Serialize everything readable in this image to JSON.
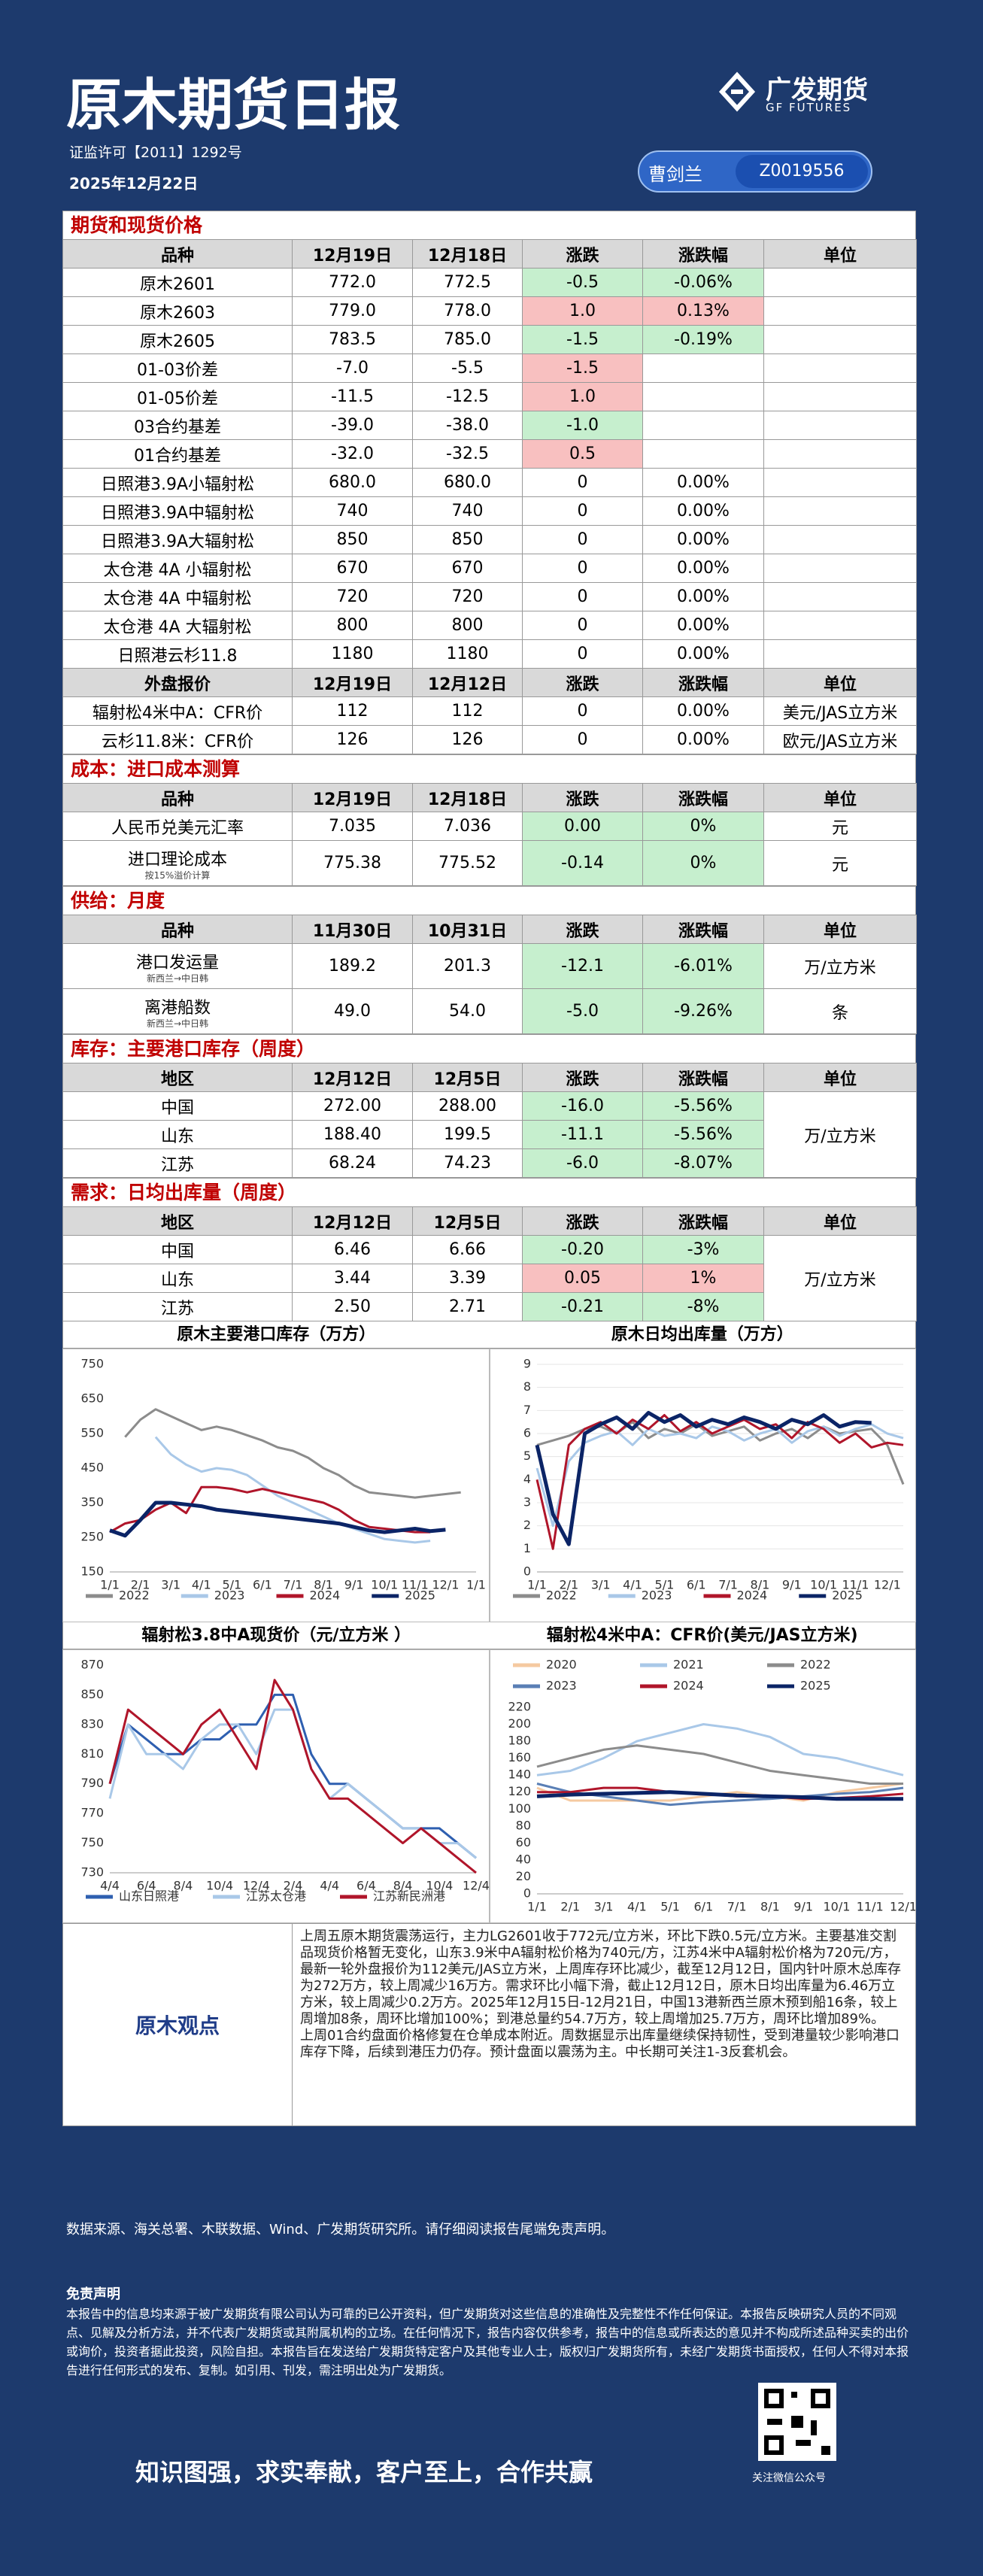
{
  "header": {
    "title": "原木期货日报",
    "license": "证监许可【2011】1292号",
    "date": "2025年12月22日",
    "logo_cn": "广发期货",
    "logo_en": "GF FUTURES",
    "analyst": "曹剑兰",
    "analyst_id": "Z0019556"
  },
  "sections": [
    {
      "title": "期货和现货价格",
      "blocks": [
        {
          "header": [
            "品种",
            "12月19日",
            "12月18日",
            "涨跌",
            "涨跌幅",
            "单位"
          ],
          "rows": [
            {
              "cells": [
                "原木2601",
                "772.0",
                "772.5",
                "-0.5",
                "-0.06%"
              ],
              "hl": {
                "3": "#c6efce",
                "4": "#c6efce"
              }
            },
            {
              "cells": [
                "原木2603",
                "779.0",
                "778.0",
                "1.0",
                "0.13%"
              ],
              "hl": {
                "3": "#f8c0c0",
                "4": "#f8c0c0"
              }
            },
            {
              "cells": [
                "原木2605",
                "783.5",
                "785.0",
                "-1.5",
                "-0.19%"
              ],
              "hl": {
                "3": "#c6efce",
                "4": "#c6efce"
              }
            },
            {
              "cells": [
                "01-03价差",
                "-7.0",
                "-5.5",
                "-1.5"
              ],
              "hl": {
                "3": "#f8c0c0"
              }
            },
            {
              "cells": [
                "01-05价差",
                "-11.5",
                "-12.5",
                "1.0"
              ],
              "hl": {
                "3": "#f8c0c0"
              }
            },
            {
              "cells": [
                "03合约基差",
                "-39.0",
                "-38.0",
                "-1.0"
              ],
              "hl": {
                "3": "#c6efce"
              }
            },
            {
              "cells": [
                "01合约基差",
                "-32.0",
                "-32.5",
                "0.5"
              ],
              "hl": {
                "3": "#f8c0c0"
              }
            },
            {
              "cells": [
                "日照港3.9A小辐射松",
                "680.0",
                "680.0",
                "0",
                "0.00%"
              ]
            },
            {
              "cells": [
                "日照港3.9A中辐射松",
                "740",
                "740",
                "0",
                "0.00%"
              ]
            },
            {
              "cells": [
                "日照港3.9A大辐射松",
                "850",
                "850",
                "0",
                "0.00%"
              ]
            },
            {
              "cells": [
                "太仓港 4A 小辐射松",
                "670",
                "670",
                "0",
                "0.00%"
              ]
            },
            {
              "cells": [
                "太仓港 4A 中辐射松",
                "720",
                "720",
                "0",
                "0.00%"
              ]
            },
            {
              "cells": [
                "太仓港 4A 大辐射松",
                "800",
                "800",
                "0",
                "0.00%"
              ]
            },
            {
              "cells": [
                "日照港云杉11.8",
                "1180",
                "1180",
                "0",
                "0.00%"
              ]
            }
          ]
        },
        {
          "header": [
            "外盘报价",
            "12月19日",
            "12月12日",
            "涨跌",
            "涨跌幅",
            "单位"
          ],
          "rows": [
            {
              "cells": [
                "辐射松4米中A：CFR价",
                "112",
                "112",
                "0",
                "0.00%"
              ],
              "unit": "美元/JAS立方米"
            },
            {
              "cells": [
                "云杉11.8米：CFR价",
                "126",
                "126",
                "0",
                "0.00%"
              ],
              "unit": "欧元/JAS立方米"
            }
          ]
        }
      ]
    },
    {
      "title": "成本：进口成本测算",
      "blocks": [
        {
          "header": [
            "品种",
            "12月19日",
            "12月18日",
            "涨跌",
            "涨跌幅",
            "单位"
          ],
          "rows": [
            {
              "cells": [
                "人民币兑美元汇率",
                "7.035",
                "7.036",
                "0.00",
                "0%"
              ],
              "unit": "元",
              "hl": {
                "3": "#c6efce",
                "4": "#c6efce"
              }
            },
            {
              "cells": [
                "进口理论成本",
                "775.38",
                "775.52",
                "-0.14",
                "0%"
              ],
              "sub": "按15%溢价计算",
              "unit": "元",
              "hl": {
                "3": "#c6efce",
                "4": "#c6efce"
              }
            }
          ]
        }
      ]
    },
    {
      "title": "供给：月度",
      "blocks": [
        {
          "header": [
            "品种",
            "11月30日",
            "10月31日",
            "涨跌",
            "涨跌幅",
            "单位"
          ],
          "rows": [
            {
              "cells": [
                "港口发运量",
                "189.2",
                "201.3",
                "-12.1",
                "-6.01%"
              ],
              "sub": "新西兰→中日韩",
              "unit": "万/立方米",
              "hl": {
                "3": "#c6efce",
                "4": "#c6efce"
              }
            },
            {
              "cells": [
                "离港船数",
                "49.0",
                "54.0",
                "-5.0",
                "-9.26%"
              ],
              "sub": "新西兰→中日韩",
              "unit": "条",
              "hl": {
                "3": "#c6efce",
                "4": "#c6efce"
              }
            }
          ]
        }
      ]
    },
    {
      "title": "库存：主要港口库存（周度）",
      "blocks": [
        {
          "header": [
            "地区",
            "12月12日",
            "12月5日",
            "涨跌",
            "涨跌幅",
            "单位"
          ],
          "unit": "万/立方米",
          "rows": [
            {
              "cells": [
                "中国",
                "272.00",
                "288.00",
                "-16.0",
                "-5.56%"
              ],
              "hl": {
                "3": "#c6efce",
                "4": "#c6efce"
              }
            },
            {
              "cells": [
                "山东",
                "188.40",
                "199.5",
                "-11.1",
                "-5.56%"
              ],
              "hl": {
                "3": "#c6efce",
                "4": "#c6efce"
              }
            },
            {
              "cells": [
                "江苏",
                "68.24",
                "74.23",
                "-6.0",
                "-8.07%"
              ],
              "hl": {
                "3": "#c6efce",
                "4": "#c6efce"
              }
            }
          ]
        }
      ]
    },
    {
      "title": "需求：日均出库量（周度）",
      "blocks": [
        {
          "header": [
            "地区",
            "12月12日",
            "12月5日",
            "涨跌",
            "涨跌幅",
            "单位"
          ],
          "unit": "万/立方米",
          "rows": [
            {
              "cells": [
                "中国",
                "6.46",
                "6.66",
                "-0.20",
                "-3%"
              ],
              "hl": {
                "3": "#c6efce",
                "4": "#c6efce"
              }
            },
            {
              "cells": [
                "山东",
                "3.44",
                "3.39",
                "0.05",
                "1%"
              ],
              "hl": {
                "3": "#f8c0c0",
                "4": "#f8c0c0"
              }
            },
            {
              "cells": [
                "江苏",
                "2.50",
                "2.71",
                "-0.21",
                "-8%"
              ],
              "hl": {
                "3": "#c6efce",
                "4": "#c6efce"
              }
            }
          ]
        }
      ]
    }
  ],
  "chart_data": [
    {
      "type": "line",
      "title": "原木主要港口库存（万方）",
      "legend": "bottom",
      "grid": false,
      "categories": [
        "1/1",
        null,
        "2/1",
        null,
        "3/1",
        null,
        "4/1",
        null,
        "5/1",
        null,
        "6/1",
        null,
        "7/1",
        null,
        "8/1",
        null,
        "9/1",
        null,
        "10/1",
        null,
        "11/1",
        null,
        "12/1",
        null,
        "1/1"
      ],
      "ylim": [
        150,
        750
      ],
      "yticks": [
        150,
        250,
        350,
        450,
        550,
        650,
        750
      ],
      "series": [
        {
          "name": "2022",
          "color": "#8c8c8c",
          "values": [
            null,
            540,
            590,
            620,
            600,
            580,
            560,
            570,
            560,
            545,
            530,
            510,
            500,
            480,
            450,
            430,
            400,
            380,
            375,
            370,
            365,
            370,
            375,
            380,
            null
          ]
        },
        {
          "name": "2023",
          "color": "#a9c8e8",
          "values": [
            null,
            null,
            null,
            540,
            490,
            460,
            440,
            450,
            445,
            430,
            400,
            370,
            350,
            330,
            310,
            290,
            275,
            260,
            245,
            240,
            235,
            240,
            null,
            null,
            null
          ]
        },
        {
          "name": "2024",
          "color": "#b0152a",
          "values": [
            265,
            290,
            300,
            330,
            350,
            320,
            395,
            395,
            390,
            380,
            390,
            380,
            370,
            360,
            350,
            330,
            300,
            280,
            275,
            270,
            265,
            265,
            null,
            null,
            null
          ]
        },
        {
          "name": "2025",
          "color": "#0b2466",
          "values": [
            270,
            255,
            300,
            350,
            350,
            345,
            340,
            330,
            325,
            320,
            315,
            310,
            305,
            300,
            295,
            290,
            280,
            270,
            265,
            270,
            275,
            268,
            272,
            null,
            null
          ]
        }
      ]
    },
    {
      "type": "line",
      "title": "原木日均出库量（万方）",
      "legend": "bottom",
      "grid": true,
      "categories": [
        "1/1",
        null,
        "2/1",
        null,
        "3/1",
        null,
        "4/1",
        null,
        "5/1",
        null,
        "6/1",
        null,
        "7/1",
        null,
        "8/1",
        null,
        "9/1",
        null,
        "10/1",
        null,
        "11/1",
        null,
        "12/1",
        null
      ],
      "ylim": [
        0,
        9
      ],
      "yticks": [
        0,
        1,
        2,
        3,
        4,
        5,
        6,
        7,
        8,
        9
      ],
      "series": [
        {
          "name": "2022",
          "color": "#8c8c8c",
          "values": [
            5.5,
            5.7,
            5.9,
            6.2,
            6.3,
            6.0,
            6.5,
            5.8,
            6.2,
            6.0,
            6.4,
            5.9,
            6.1,
            6.3,
            5.7,
            6.0,
            6.2,
            5.8,
            6.3,
            6.0,
            6.1,
            6.2,
            5.5,
            3.8
          ]
        },
        {
          "name": "2023",
          "color": "#a9c8e8",
          "values": [
            4.5,
            2.0,
            4.8,
            5.6,
            5.9,
            6.1,
            5.5,
            6.2,
            5.9,
            6.0,
            5.8,
            6.3,
            6.1,
            5.7,
            6.0,
            6.2,
            5.6,
            6.1,
            6.3,
            5.9,
            6.2,
            6.4,
            6.0,
            5.8
          ]
        },
        {
          "name": "2024",
          "color": "#b0152a",
          "values": [
            4.0,
            1.0,
            5.5,
            6.2,
            6.5,
            6.0,
            6.6,
            6.2,
            6.8,
            6.1,
            6.5,
            6.0,
            6.3,
            6.6,
            6.2,
            6.4,
            5.8,
            6.5,
            6.2,
            5.6,
            6.0,
            5.4,
            5.6,
            5.5
          ]
        },
        {
          "name": "2025",
          "color": "#0b2466",
          "values": [
            5.5,
            2.5,
            1.2,
            6.0,
            6.4,
            6.7,
            6.2,
            6.9,
            6.5,
            6.8,
            6.3,
            6.6,
            6.4,
            6.7,
            6.5,
            6.2,
            6.6,
            6.4,
            6.8,
            6.3,
            6.5,
            6.46,
            null,
            null
          ]
        }
      ]
    },
    {
      "type": "line",
      "title": "辐射松3.8中A现货价（元/立方米 ）",
      "legend": "bottom",
      "grid": false,
      "categories": [
        "4/4",
        null,
        "6/4",
        null,
        "8/4",
        null,
        "10/4",
        null,
        "12/4",
        null,
        "2/4",
        null,
        "4/4",
        null,
        "6/4",
        null,
        "8/4",
        null,
        "10/4",
        null,
        "12/4"
      ],
      "ylim": [
        730,
        870
      ],
      "yticks": [
        730,
        750,
        770,
        790,
        810,
        830,
        850,
        870
      ],
      "series": [
        {
          "name": "山东日照港",
          "color": "#2e5fb0",
          "values": [
            790,
            830,
            820,
            810,
            810,
            820,
            820,
            830,
            830,
            850,
            850,
            810,
            790,
            790,
            780,
            770,
            760,
            760,
            760,
            750,
            740
          ]
        },
        {
          "name": "江苏太仓港",
          "color": "#a9c8e8",
          "values": [
            780,
            830,
            810,
            810,
            800,
            820,
            830,
            830,
            810,
            840,
            840,
            800,
            780,
            790,
            780,
            770,
            760,
            760,
            750,
            750,
            740
          ]
        },
        {
          "name": "江苏新民洲港",
          "color": "#b0152a",
          "values": [
            790,
            840,
            830,
            820,
            810,
            830,
            840,
            820,
            800,
            860,
            840,
            800,
            780,
            780,
            770,
            760,
            750,
            760,
            750,
            740,
            730
          ]
        }
      ]
    },
    {
      "type": "line",
      "title": "辐射松4米中A：CFR价(美元/JAS立方米)",
      "legend": "top",
      "grid": false,
      "categories": [
        "1/1",
        "2/1",
        "3/1",
        "4/1",
        "5/1",
        "6/1",
        "7/1",
        "8/1",
        "9/1",
        "10/1",
        "11/1",
        "12/1"
      ],
      "ylim": [
        0,
        220
      ],
      "yticks": [
        0,
        20,
        40,
        60,
        80,
        100,
        120,
        140,
        160,
        180,
        200,
        220
      ],
      "series": [
        {
          "name": "2020",
          "color": "#f5c9a0",
          "values": [
            125,
            110,
            110,
            110,
            110,
            115,
            120,
            115,
            110,
            120,
            125,
            130
          ]
        },
        {
          "name": "2021",
          "color": "#a9c8e8",
          "values": [
            140,
            145,
            160,
            180,
            190,
            200,
            195,
            185,
            165,
            160,
            150,
            140
          ]
        },
        {
          "name": "2022",
          "color": "#8c8c8c",
          "values": [
            150,
            160,
            170,
            175,
            170,
            165,
            155,
            145,
            140,
            135,
            130,
            130
          ]
        },
        {
          "name": "2023",
          "color": "#5a7fb5",
          "values": [
            130,
            120,
            115,
            110,
            105,
            108,
            110,
            112,
            115,
            118,
            120,
            125
          ]
        },
        {
          "name": "2024",
          "color": "#b0152a",
          "values": [
            120,
            120,
            125,
            125,
            120,
            118,
            115,
            115,
            112,
            113,
            115,
            118
          ]
        },
        {
          "name": "2025",
          "color": "#0b2466",
          "values": [
            115,
            117,
            118,
            119,
            120,
            118,
            116,
            115,
            114,
            112,
            112,
            112
          ]
        }
      ]
    }
  ],
  "viewpoint": {
    "label": "原木观点",
    "paragraphs": [
      "上周五原木期货震荡运行，主力LG2601收于772元/立方米，环比下跌0.5元/立方米。主要基准交割品现货价格暂无变化，山东3.9米中A辐射松价格为740元/方，江苏4米中A辐射松价格为720元/方，最新一轮外盘报价为112美元/JAS立方米，上周库存环比减少，截至12月12日，国内针叶原木总库存为272万方，较上周减少16万方。需求环比小幅下滑，截止12月12日，原木日均出库量为6.46万立方米，较上周减少0.2万方。2025年12月15日-12月21日，中国13港新西兰原木预到船16条，较上周增加8条，周环比增加100%；到港总量约54.7万方，较上周增加25.7万方，周环比增加89%。",
      "上周01合约盘面价格修复在仓单成本附近。周数据显示出库量继续保持韧性，受到港量较少影响港口库存下降，后续到港压力仍存。预计盘面以震荡为主。中长期可关注1-3反套机会。"
    ]
  },
  "footer": {
    "source": "数据来源、海关总署、木联数据、Wind、广发期货研究所。请仔细阅读报告尾端免责声明。",
    "disclaimer_title": "免责声明",
    "disclaimer": "本报告中的信息均来源于被广发期货有限公司认为可靠的已公开资料，但广发期货对这些信息的准确性及完整性不作任何保证。本报告反映研究人员的不同观点、见解及分析方法，并不代表广发期货或其附属机构的立场。在任何情况下，报告内容仅供参考，报告中的信息或所表达的意见并不构成所述品种买卖的出价或询价，投资者据此投资，风险自担。本报告旨在发送给广发期货特定客户及其他专业人士，版权归广发期货所有，未经广发期货书面授权，任何人不得对本报告进行任何形式的发布、复制。如引用、刊发，需注明出处为广发期货。",
    "slogan": "知识图强，求实奉献，客户至上，合作共赢",
    "qr_caption": "关注微信公众号"
  }
}
